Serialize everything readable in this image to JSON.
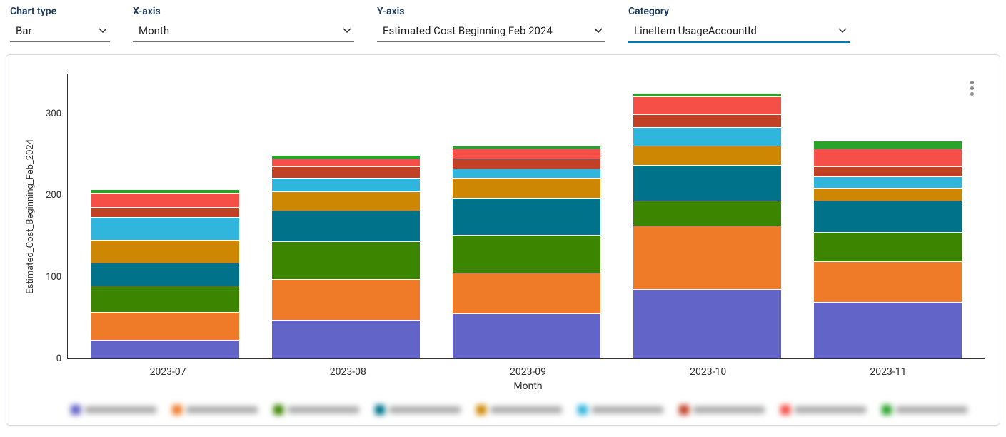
{
  "controls": {
    "chart_type": {
      "label": "Chart type",
      "value": "Bar"
    },
    "x_axis": {
      "label": "X-axis",
      "value": "Month"
    },
    "y_axis": {
      "label": "Y-axis",
      "value": "Estimated Cost Beginning Feb 2024"
    },
    "category": {
      "label": "Category",
      "value": "LineItem UsageAccountId"
    }
  },
  "chart": {
    "type": "stacked-bar",
    "y_axis_label": "Estimated_Cost_Beginning_Feb_2024",
    "x_axis_label": "Month",
    "y_ticks": [
      "300",
      "200",
      "100",
      "0"
    ],
    "ylim_max": 350,
    "background_color": "#ffffff",
    "series_colors": [
      "#6364c8",
      "#ef7b29",
      "#3c8500",
      "#00738a",
      "#ce8703",
      "#30b6dc",
      "#c14127",
      "#f54f47",
      "#29a329"
    ],
    "categories": [
      "2023-07",
      "2023-08",
      "2023-09",
      "2023-10",
      "2023-11"
    ],
    "stacks": [
      [
        24,
        34,
        32,
        28,
        28,
        28,
        12,
        18,
        4
      ],
      [
        48,
        50,
        46,
        38,
        24,
        16,
        14,
        10,
        4
      ],
      [
        56,
        50,
        46,
        46,
        24,
        12,
        12,
        12,
        4
      ],
      [
        86,
        78,
        30,
        44,
        24,
        22,
        16,
        22,
        4
      ],
      [
        70,
        50,
        36,
        38,
        16,
        14,
        12,
        22,
        10
      ]
    ],
    "legend_placeholder_count": 9
  }
}
